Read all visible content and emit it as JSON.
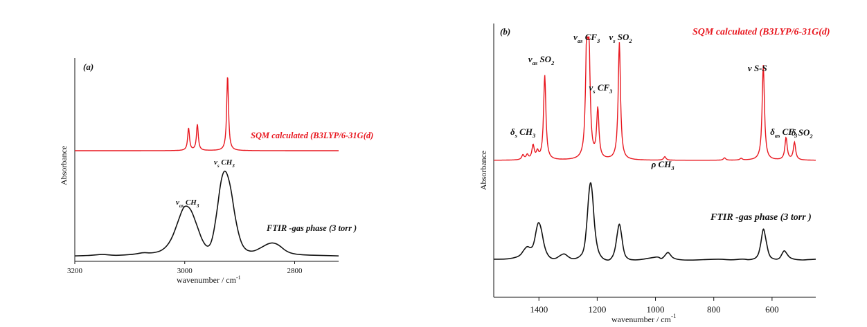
{
  "colors": {
    "calculated": "#e8171f",
    "experimental": "#111111"
  },
  "chart_data": [
    {
      "type": "line",
      "panel_label": "(a)",
      "xlabel_main": "wavenumber / cm",
      "xlabel_sup": "-1",
      "ylabel": "Absorbance",
      "xlim": [
        3200,
        2720
      ],
      "xticks": [
        3200,
        3000,
        2800
      ],
      "xtick_labels": [
        "3200",
        "3000",
        "2800"
      ],
      "series": [
        {
          "name": "SQM calculated (B3LYP/6-31G(d)",
          "style": "stick",
          "peaks": [
            {
              "x": 2993,
              "h": 0.3
            },
            {
              "x": 2977,
              "h": 0.35
            },
            {
              "x": 2922,
              "h": 1.0
            }
          ]
        },
        {
          "name": "FTIR -gas phase (3 torr )",
          "style": "broad",
          "points": [
            [
              3200,
              0.03
            ],
            [
              3170,
              0.035
            ],
            [
              3150,
              0.05
            ],
            [
              3130,
              0.035
            ],
            [
              3110,
              0.04
            ],
            [
              3090,
              0.05
            ],
            [
              3075,
              0.07
            ],
            [
              3060,
              0.06
            ],
            [
              3040,
              0.09
            ],
            [
              3025,
              0.2
            ],
            [
              3012,
              0.42
            ],
            [
              3003,
              0.58
            ],
            [
              2996,
              0.6
            ],
            [
              2988,
              0.55
            ],
            [
              2978,
              0.38
            ],
            [
              2968,
              0.2
            ],
            [
              2958,
              0.12
            ],
            [
              2950,
              0.2
            ],
            [
              2942,
              0.5
            ],
            [
              2935,
              0.85
            ],
            [
              2929,
              1.0
            ],
            [
              2923,
              0.97
            ],
            [
              2916,
              0.8
            ],
            [
              2908,
              0.45
            ],
            [
              2898,
              0.18
            ],
            [
              2888,
              0.09
            ],
            [
              2875,
              0.08
            ],
            [
              2862,
              0.12
            ],
            [
              2848,
              0.17
            ],
            [
              2838,
              0.18
            ],
            [
              2828,
              0.15
            ],
            [
              2815,
              0.08
            ],
            [
              2800,
              0.05
            ],
            [
              2780,
              0.04
            ],
            [
              2750,
              0.035
            ],
            [
              2720,
              0.03
            ]
          ]
        }
      ],
      "annotations": [
        {
          "main": "ν",
          "sub": "as",
          "rest": "CH",
          "sub2": "3",
          "x": 2995
        },
        {
          "main": "ν",
          "sub": "s",
          "rest": "CH",
          "sub2": "3",
          "x": 2928
        }
      ]
    },
    {
      "type": "line",
      "panel_label": "(b)",
      "xlabel_main": "wavenumber / cm",
      "xlabel_sup": "-1",
      "ylabel": "Absorbance",
      "xlim": [
        1555,
        450
      ],
      "xticks": [
        1400,
        1200,
        1000,
        800,
        600
      ],
      "xtick_labels": [
        "1400",
        "1200",
        "1000",
        "800",
        "600"
      ],
      "series": [
        {
          "name": "SQM calculated (B3LYP/6-31G(d)",
          "style": "stick",
          "peaks": [
            {
              "x": 1455,
              "h": 0.04
            },
            {
              "x": 1440,
              "h": 0.04
            },
            {
              "x": 1420,
              "h": 0.12
            },
            {
              "x": 1405,
              "h": 0.06
            },
            {
              "x": 1380,
              "h": 0.72
            },
            {
              "x": 1236,
              "h": 0.92
            },
            {
              "x": 1228,
              "h": 0.82
            },
            {
              "x": 1198,
              "h": 0.42
            },
            {
              "x": 1124,
              "h": 1.0
            },
            {
              "x": 968,
              "h": 0.03
            },
            {
              "x": 763,
              "h": 0.02
            },
            {
              "x": 706,
              "h": 0.015
            },
            {
              "x": 630,
              "h": 0.81
            },
            {
              "x": 552,
              "h": 0.19
            },
            {
              "x": 523,
              "h": 0.15
            }
          ]
        },
        {
          "name": "FTIR -gas phase (3 torr )",
          "style": "broad",
          "points": [
            [
              1555,
              0.05
            ],
            [
              1520,
              0.05
            ],
            [
              1490,
              0.06
            ],
            [
              1465,
              0.09
            ],
            [
              1452,
              0.16
            ],
            [
              1440,
              0.21
            ],
            [
              1428,
              0.18
            ],
            [
              1418,
              0.22
            ],
            [
              1406,
              0.46
            ],
            [
              1400,
              0.5
            ],
            [
              1392,
              0.42
            ],
            [
              1380,
              0.18
            ],
            [
              1365,
              0.07
            ],
            [
              1345,
              0.05
            ],
            [
              1325,
              0.1
            ],
            [
              1312,
              0.12
            ],
            [
              1300,
              0.08
            ],
            [
              1285,
              0.05
            ],
            [
              1262,
              0.07
            ],
            [
              1245,
              0.15
            ],
            [
              1236,
              0.45
            ],
            [
              1228,
              0.88
            ],
            [
              1222,
              1.0
            ],
            [
              1216,
              0.82
            ],
            [
              1208,
              0.4
            ],
            [
              1198,
              0.16
            ],
            [
              1185,
              0.07
            ],
            [
              1170,
              0.04
            ],
            [
              1155,
              0.04
            ],
            [
              1140,
              0.13
            ],
            [
              1130,
              0.38
            ],
            [
              1124,
              0.5
            ],
            [
              1118,
              0.38
            ],
            [
              1108,
              0.12
            ],
            [
              1095,
              0.05
            ],
            [
              1070,
              0.04
            ],
            [
              1040,
              0.05
            ],
            [
              1010,
              0.07
            ],
            [
              990,
              0.08
            ],
            [
              980,
              0.05
            ],
            [
              968,
              0.09
            ],
            [
              958,
              0.14
            ],
            [
              950,
              0.11
            ],
            [
              940,
              0.06
            ],
            [
              910,
              0.04
            ],
            [
              870,
              0.04
            ],
            [
              840,
              0.045
            ],
            [
              800,
              0.05
            ],
            [
              770,
              0.05
            ],
            [
              740,
              0.04
            ],
            [
              700,
              0.055
            ],
            [
              675,
              0.04
            ],
            [
              650,
              0.07
            ],
            [
              640,
              0.2
            ],
            [
              632,
              0.4
            ],
            [
              628,
              0.42
            ],
            [
              620,
              0.26
            ],
            [
              610,
              0.09
            ],
            [
              595,
              0.05
            ],
            [
              575,
              0.05
            ],
            [
              565,
              0.12
            ],
            [
              558,
              0.16
            ],
            [
              550,
              0.12
            ],
            [
              540,
              0.07
            ],
            [
              525,
              0.05
            ],
            [
              500,
              0.04
            ],
            [
              480,
              0.045
            ],
            [
              450,
              0.05
            ]
          ]
        }
      ],
      "annotations": [
        {
          "main": "δ",
          "sub": "s",
          "rest": "CH",
          "sub2": "3",
          "x": 1455
        },
        {
          "main": "ν",
          "sub": "as",
          "rest": "SO",
          "sub2": "2",
          "x": 1392
        },
        {
          "main": "ν",
          "sub": "as",
          "rest": "CF",
          "sub2": "3",
          "x": 1236
        },
        {
          "main": "ν",
          "sub": "s",
          "rest": "CF",
          "sub2": "3",
          "x": 1188
        },
        {
          "main": "ν",
          "sub": "s",
          "rest": "SO",
          "sub2": "2",
          "x": 1120
        },
        {
          "main": "ρ",
          "sub": "",
          "rest": "CH",
          "sub2": "3",
          "x": 975
        },
        {
          "main": "ν",
          "sub": "",
          "rest": "S-S",
          "sub2": "",
          "x": 650
        },
        {
          "main": "δ",
          "sub": "as",
          "rest": "CF",
          "sub2": "3",
          "x": 560
        },
        {
          "main": "δ",
          "sub": "",
          "rest": "SO",
          "sub2": "2",
          "x": 497
        }
      ]
    }
  ]
}
